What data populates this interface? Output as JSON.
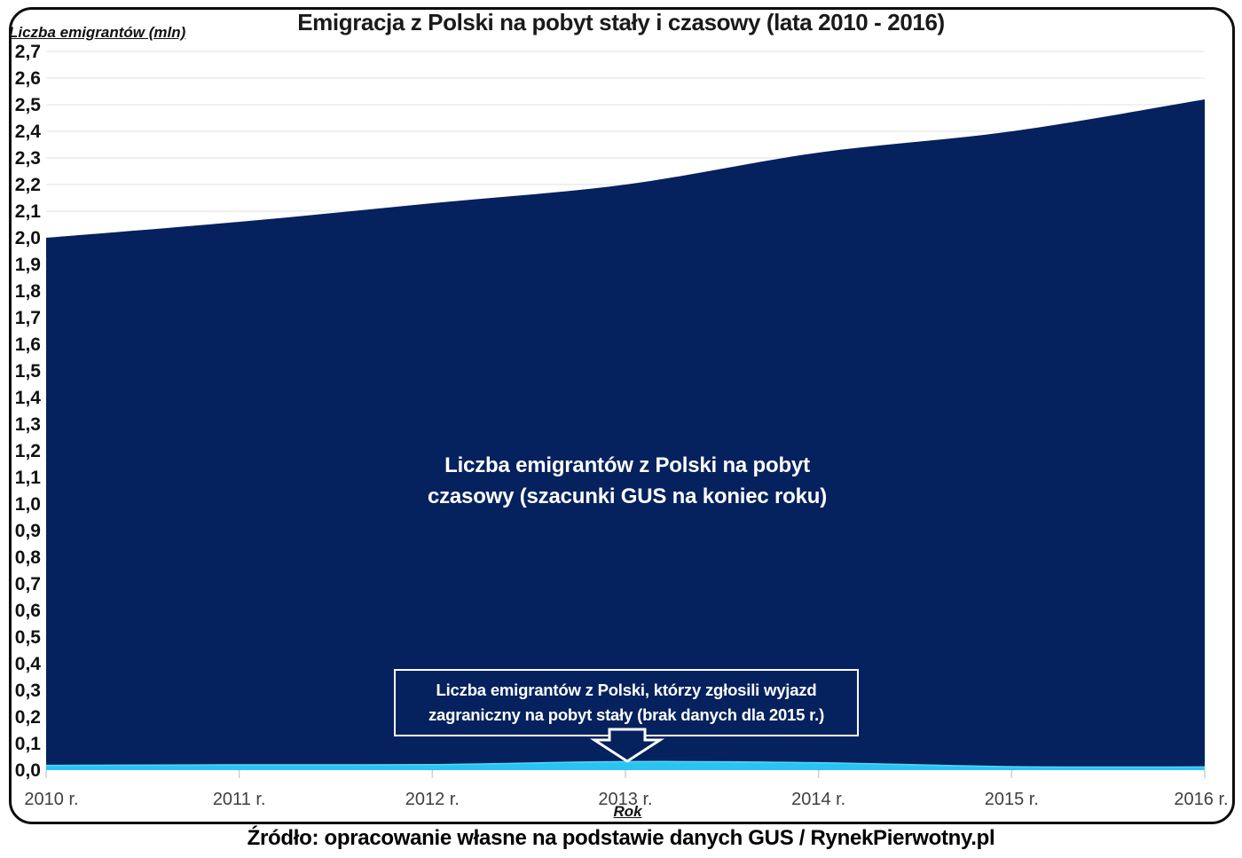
{
  "title": "Emigracja z Polski na pobyt stały i czasowy (lata 2010 - 2016)",
  "y_axis_title": "Liczba emigrantów (mln)",
  "x_axis_title": "Rok",
  "source": "Źródło: opracowanie własne na podstawie danych GUS / RynekPierwotny.pl",
  "annotations": {
    "temporary_series_label": "Liczba emigrantów z Polski na pobyt czasowy (szacunki GUS na koniec roku)",
    "permanent_series_callout": "Liczba emigrantów z Polski, którzy zgłosili wyjazd zagraniczny na pobyt stały (brak danych dla 2015 r.)"
  },
  "colors": {
    "temporary_area": "#05215E",
    "permanent_area": "#2BC4F0",
    "permanent_edge": "#53D6F8",
    "grid": "#E1E1E1",
    "tick": "#CFCFCF",
    "x_label": "#3F3F3F",
    "y_label": "#111111"
  },
  "chart_data": {
    "type": "area",
    "title": "Emigracja z Polski na pobyt stały i czasowy (lata 2010 - 2016)",
    "xlabel": "Rok",
    "ylabel": "Liczba emigrantów (mln)",
    "categories": [
      "2010 r.",
      "2011 r.",
      "2012 r.",
      "2013 r.",
      "2014 r.",
      "2015 r.",
      "2016 r."
    ],
    "series": [
      {
        "name": "Liczba emigrantów z Polski na pobyt czasowy (szacunki GUS na koniec roku)",
        "values": [
          2.0,
          2.06,
          2.13,
          2.2,
          2.32,
          2.4,
          2.52
        ],
        "color": "#05215E"
      },
      {
        "name": "Liczba emigrantów z Polski, którzy zgłosili wyjazd zagraniczny na pobyt stały (brak danych dla 2015 r.)",
        "values": [
          0.018,
          0.02,
          0.021,
          0.032,
          0.028,
          null,
          0.012
        ],
        "render_values": [
          0.018,
          0.02,
          0.021,
          0.032,
          0.028,
          0.013,
          0.012
        ],
        "missing_note": "brak danych dla 2015 r.",
        "color": "#2BC4F0"
      }
    ],
    "ylim": [
      0.0,
      2.7
    ],
    "ytick_step": 0.1,
    "ytick_decimal_separator": ",",
    "grid": true,
    "legend_position": "none"
  }
}
